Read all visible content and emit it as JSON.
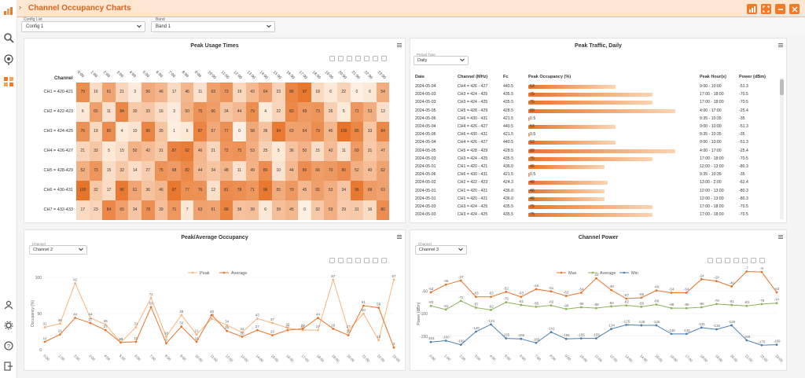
{
  "window": {
    "title": "Channel Occupancy Charts"
  },
  "colors": {
    "accent": "#ef7b27"
  },
  "toolbar": {
    "config": {
      "label": "Config List",
      "value": "Config 1"
    },
    "band": {
      "label": "Band",
      "value": "Band 1"
    }
  },
  "sidebar": {
    "icons": [
      "chart-icon",
      "search-icon",
      "radar-icon",
      "grid-icon",
      "user-icon",
      "settings-icon",
      "help-icon",
      "logout-icon"
    ]
  },
  "heatmap": {
    "title": "Peak Usage Times",
    "row_header": "Channel",
    "rows": [
      "CH1 = 420-421",
      "CH2 = 422-423",
      "CH3 = 424-425",
      "CH4 = 426-427",
      "CH5 = 428-429",
      "CH6 = 430-431",
      "CH7 = 432-433"
    ],
    "cols": [
      "0:00",
      "1:00",
      "2:00",
      "3:00",
      "4:00",
      "5:00",
      "6:00",
      "7:00",
      "8:00",
      "9:00",
      "10:00",
      "11:00",
      "12:00",
      "13:00",
      "14:00",
      "15:00",
      "16:00",
      "17:00",
      "18:00",
      "19:00",
      "20:00",
      "21:00",
      "22:00",
      "23:00"
    ],
    "values": [
      [
        79,
        16,
        61,
        21,
        3,
        56,
        46,
        17,
        46,
        11,
        63,
        73,
        19,
        43,
        64,
        23,
        86,
        97,
        18,
        6,
        22,
        0,
        6,
        54
      ],
      [
        6,
        65,
        11,
        84,
        30,
        33,
        16,
        3,
        50,
        75,
        66,
        34,
        44,
        79,
        4,
        22,
        83,
        69,
        73,
        26,
        5,
        71,
        53,
        12
      ],
      [
        76,
        19,
        80,
        4,
        10,
        86,
        35,
        1,
        6,
        87,
        57,
        77,
        0,
        58,
        36,
        94,
        63,
        64,
        79,
        46,
        100,
        85,
        33,
        84
      ],
      [
        21,
        33,
        5,
        15,
        50,
        42,
        31,
        87,
        92,
        46,
        21,
        72,
        75,
        53,
        25,
        5,
        36,
        50,
        15,
        42,
        11,
        69,
        31,
        47
      ],
      [
        52,
        73,
        15,
        32,
        14,
        27,
        75,
        68,
        82,
        44,
        34,
        48,
        11,
        49,
        80,
        10,
        44,
        80,
        66,
        70,
        80,
        52,
        40,
        62
      ],
      [
        100,
        32,
        17,
        96,
        61,
        36,
        46,
        97,
        77,
        76,
        12,
        81,
        78,
        71,
        96,
        55,
        70,
        45,
        65,
        53,
        34,
        96,
        68,
        63
      ],
      [
        17,
        23,
        84,
        65,
        34,
        78,
        39,
        71,
        7,
        63,
        61,
        88,
        38,
        39,
        6,
        39,
        45,
        0,
        32,
        53,
        29,
        31,
        16,
        80
      ]
    ]
  },
  "traffic": {
    "title": "Peak Traffic, Daily",
    "period_label": "Period Type",
    "period_value": "Daily",
    "headers": [
      "Date",
      "Channel (MHz)",
      "Fc",
      "Peak Occupancy (%)",
      "Peak Hour(s)",
      "Power (dBm)"
    ],
    "rows": [
      [
        "2024-05-04",
        "CH4 = 426 - 427",
        "440.5",
        "53",
        "9:00 - 10:00",
        "-51.3"
      ],
      [
        "2024-05-03",
        "CH3 = 424 - 425",
        "435.5",
        "75",
        "17:00 - 18:00",
        "-70.5"
      ],
      [
        "2024-05-03",
        "CH3 = 424 - 425",
        "435.5",
        "75",
        "17:00 - 18:00",
        "-70.5"
      ],
      [
        "2024-05-05",
        "CH5 = 428 - 429",
        "428.5",
        "89",
        "4:00 - 17:00",
        "-25.4"
      ],
      [
        "2024-05-06",
        "CH6 = 430 - 431",
        "421.5",
        "0.5",
        "9:35 - 10:35",
        "-35"
      ],
      [
        "2024-05-04",
        "CH4 = 426 - 427",
        "440.5",
        "53",
        "9:00 - 10:00",
        "-51.3"
      ],
      [
        "2024-05-06",
        "CH6 = 430 - 431",
        "421.5",
        "0.5",
        "9:35 - 10:35",
        "-35"
      ],
      [
        "2024-05-04",
        "CH4 = 426 - 427",
        "440.5",
        "53",
        "9:00 - 10:00",
        "-51.3"
      ],
      [
        "2024-05-05",
        "CH5 = 428 - 429",
        "428.5",
        "89",
        "4:00 - 17:00",
        "-25.4"
      ],
      [
        "2024-05-03",
        "CH3 = 424 - 425",
        "435.5",
        "75",
        "17:00 - 18:00",
        "-70.5"
      ],
      [
        "2024-05-01",
        "CH1 = 420 - 421",
        "436.0",
        "46",
        "12:00 - 13:00",
        "-80.3"
      ],
      [
        "2024-05-06",
        "CH6 = 430 - 431",
        "421.5",
        "0.5",
        "9:35 - 10:35",
        "-35"
      ],
      [
        "2024-05-02",
        "CH2 = 422 - 423",
        "424.3",
        "48",
        "13:00 - 2:00",
        "-62.4"
      ],
      [
        "2024-05-01",
        "CH1 = 420 - 421",
        "436.0",
        "46",
        "12:00 - 13:00",
        "-80.3"
      ],
      [
        "2024-05-01",
        "CH1 = 420 - 421",
        "436.0",
        "46",
        "12:00 - 13:00",
        "-80.3"
      ],
      [
        "2024-05-03",
        "CH3 = 424 - 425",
        "435.5",
        "75",
        "17:00 - 18:00",
        "-70.5"
      ],
      [
        "2024-05-03",
        "CH3 = 424 - 425",
        "435.5",
        "75",
        "17:00 - 18:00",
        "-70.5"
      ]
    ]
  },
  "occupancy": {
    "title": "Peak/Average Occupancy",
    "channel_label": "Channel",
    "channel_value": "Channel 2",
    "ylabel": "Occupancy (%)",
    "chart_data": {
      "type": "line",
      "x": [
        "0:00",
        "1:00",
        "2:00",
        "3:00",
        "4:00",
        "5:00",
        "6:00",
        "7:00",
        "8:00",
        "9:00",
        "10:00",
        "11:00",
        "12:00",
        "13:00",
        "14:00",
        "15:00",
        "16:00",
        "17:00",
        "18:00",
        "19:00",
        "20:00",
        "21:00",
        "22:00",
        "23:00"
      ],
      "ylim": [
        0,
        100
      ],
      "yticks": [
        0,
        50,
        100
      ],
      "series": [
        {
          "name": "Peak",
          "color": "#f5b57c",
          "values": [
            31,
            36,
            92,
            44,
            35,
            10,
            31,
            72,
            18,
            48,
            21,
            43,
            34,
            24,
            43,
            37,
            30,
            27,
            27,
            97,
            27,
            50,
            13,
            97
          ]
        },
        {
          "name": "Average",
          "color": "#e8742a",
          "values": [
            11,
            21,
            44,
            37,
            27,
            10,
            11,
            59,
            9,
            32,
            11,
            48,
            26,
            18,
            27,
            20,
            27,
            29,
            44,
            29,
            20,
            61,
            58,
            3
          ]
        }
      ]
    }
  },
  "power": {
    "title": "Channel Power",
    "channel_label": "Channel",
    "channel_value": "Channel 3",
    "ylabel": "Power (dBm)",
    "chart_data": {
      "type": "line",
      "x": [
        "0:00",
        "1:00",
        "2:00",
        "3:00",
        "4:00",
        "5:00",
        "6:00",
        "7:00",
        "8:00",
        "9:00",
        "10:00",
        "11:00",
        "12:00",
        "13:00",
        "14:00",
        "15:00",
        "16:00",
        "17:00",
        "18:00",
        "19:00",
        "20:00",
        "21:00",
        "22:00",
        "23:00"
      ],
      "ylim": [
        -180,
        -20
      ],
      "yticks": [
        -50,
        -100,
        -150
      ],
      "series": [
        {
          "name": "Max",
          "color": "#e8742a",
          "values": [
            -53,
            -36,
            -27,
            -63,
            -63,
            -52,
            -63,
            -46,
            -51,
            -61,
            -54,
            -22,
            -48,
            -67,
            -65,
            -49,
            -54,
            -54,
            -24,
            -28,
            -40,
            -7,
            -8,
            -53
          ]
        },
        {
          "name": "Average",
          "color": "#8bb35a",
          "values": [
            -83,
            -91,
            -72,
            -87,
            -92,
            -75,
            -81,
            -85,
            -82,
            -90,
            -86,
            -88,
            -84,
            -82,
            -85,
            -80,
            -88,
            -88,
            -86,
            -79,
            -81,
            -83,
            -79,
            -77
          ]
        },
        {
          "name": "Min",
          "color": "#4a7fb0",
          "values": [
            -163,
            -160,
            -169,
            -140,
            -124,
            -155,
            -156,
            -165,
            -141,
            -156,
            -155,
            -155,
            -134,
            -125,
            -126,
            -126,
            -145,
            -145,
            -131,
            -135,
            -126,
            -159,
            -170,
            -169
          ]
        }
      ]
    }
  }
}
